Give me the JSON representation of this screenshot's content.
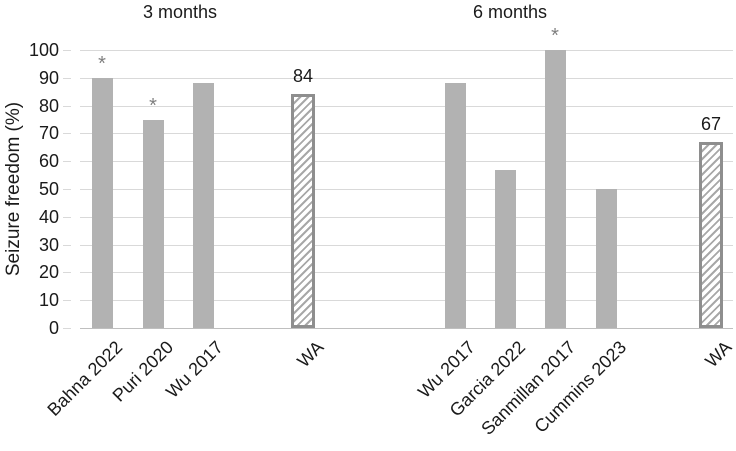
{
  "chart_data": {
    "type": "bar",
    "ylabel": "Seizure freedom (%)",
    "ylim": [
      0,
      100
    ],
    "ytick_step": 10,
    "yticks": [
      0,
      10,
      20,
      30,
      40,
      50,
      60,
      70,
      80,
      90,
      100
    ],
    "grid": true,
    "legend": "none",
    "groups": [
      {
        "title": "3 months",
        "bars": [
          {
            "label": "Bahna 2022",
            "value": 90,
            "marker": "*",
            "style": "solid"
          },
          {
            "label": "Puri 2020",
            "value": 75,
            "marker": "*",
            "style": "solid"
          },
          {
            "label": "Wu 2017",
            "value": 88,
            "style": "solid"
          },
          {
            "label": "WA",
            "value": 84,
            "value_label": "84",
            "style": "hatched"
          }
        ]
      },
      {
        "title": "6 months",
        "bars": [
          {
            "label": "Wu 2017",
            "value": 88,
            "style": "solid"
          },
          {
            "label": "Garcia 2022",
            "value": 57,
            "style": "solid"
          },
          {
            "label": "Sanmillan 2017",
            "value": 100,
            "marker": "*",
            "style": "solid"
          },
          {
            "label": "Cummins 2023",
            "value": 50,
            "style": "solid"
          },
          {
            "label": "WA",
            "value": 67,
            "value_label": "67",
            "style": "hatched"
          }
        ]
      }
    ],
    "colors": {
      "bar_fill": "#b2b2b2",
      "hatch_border": "#8e8e8e",
      "hatch_line": "#a8a8a8",
      "gridline": "#d9d9d9",
      "axis_line": "#bfbfbf",
      "marker": "#7f7f7f",
      "text": "#1a1a1a",
      "background": "#ffffff"
    }
  }
}
